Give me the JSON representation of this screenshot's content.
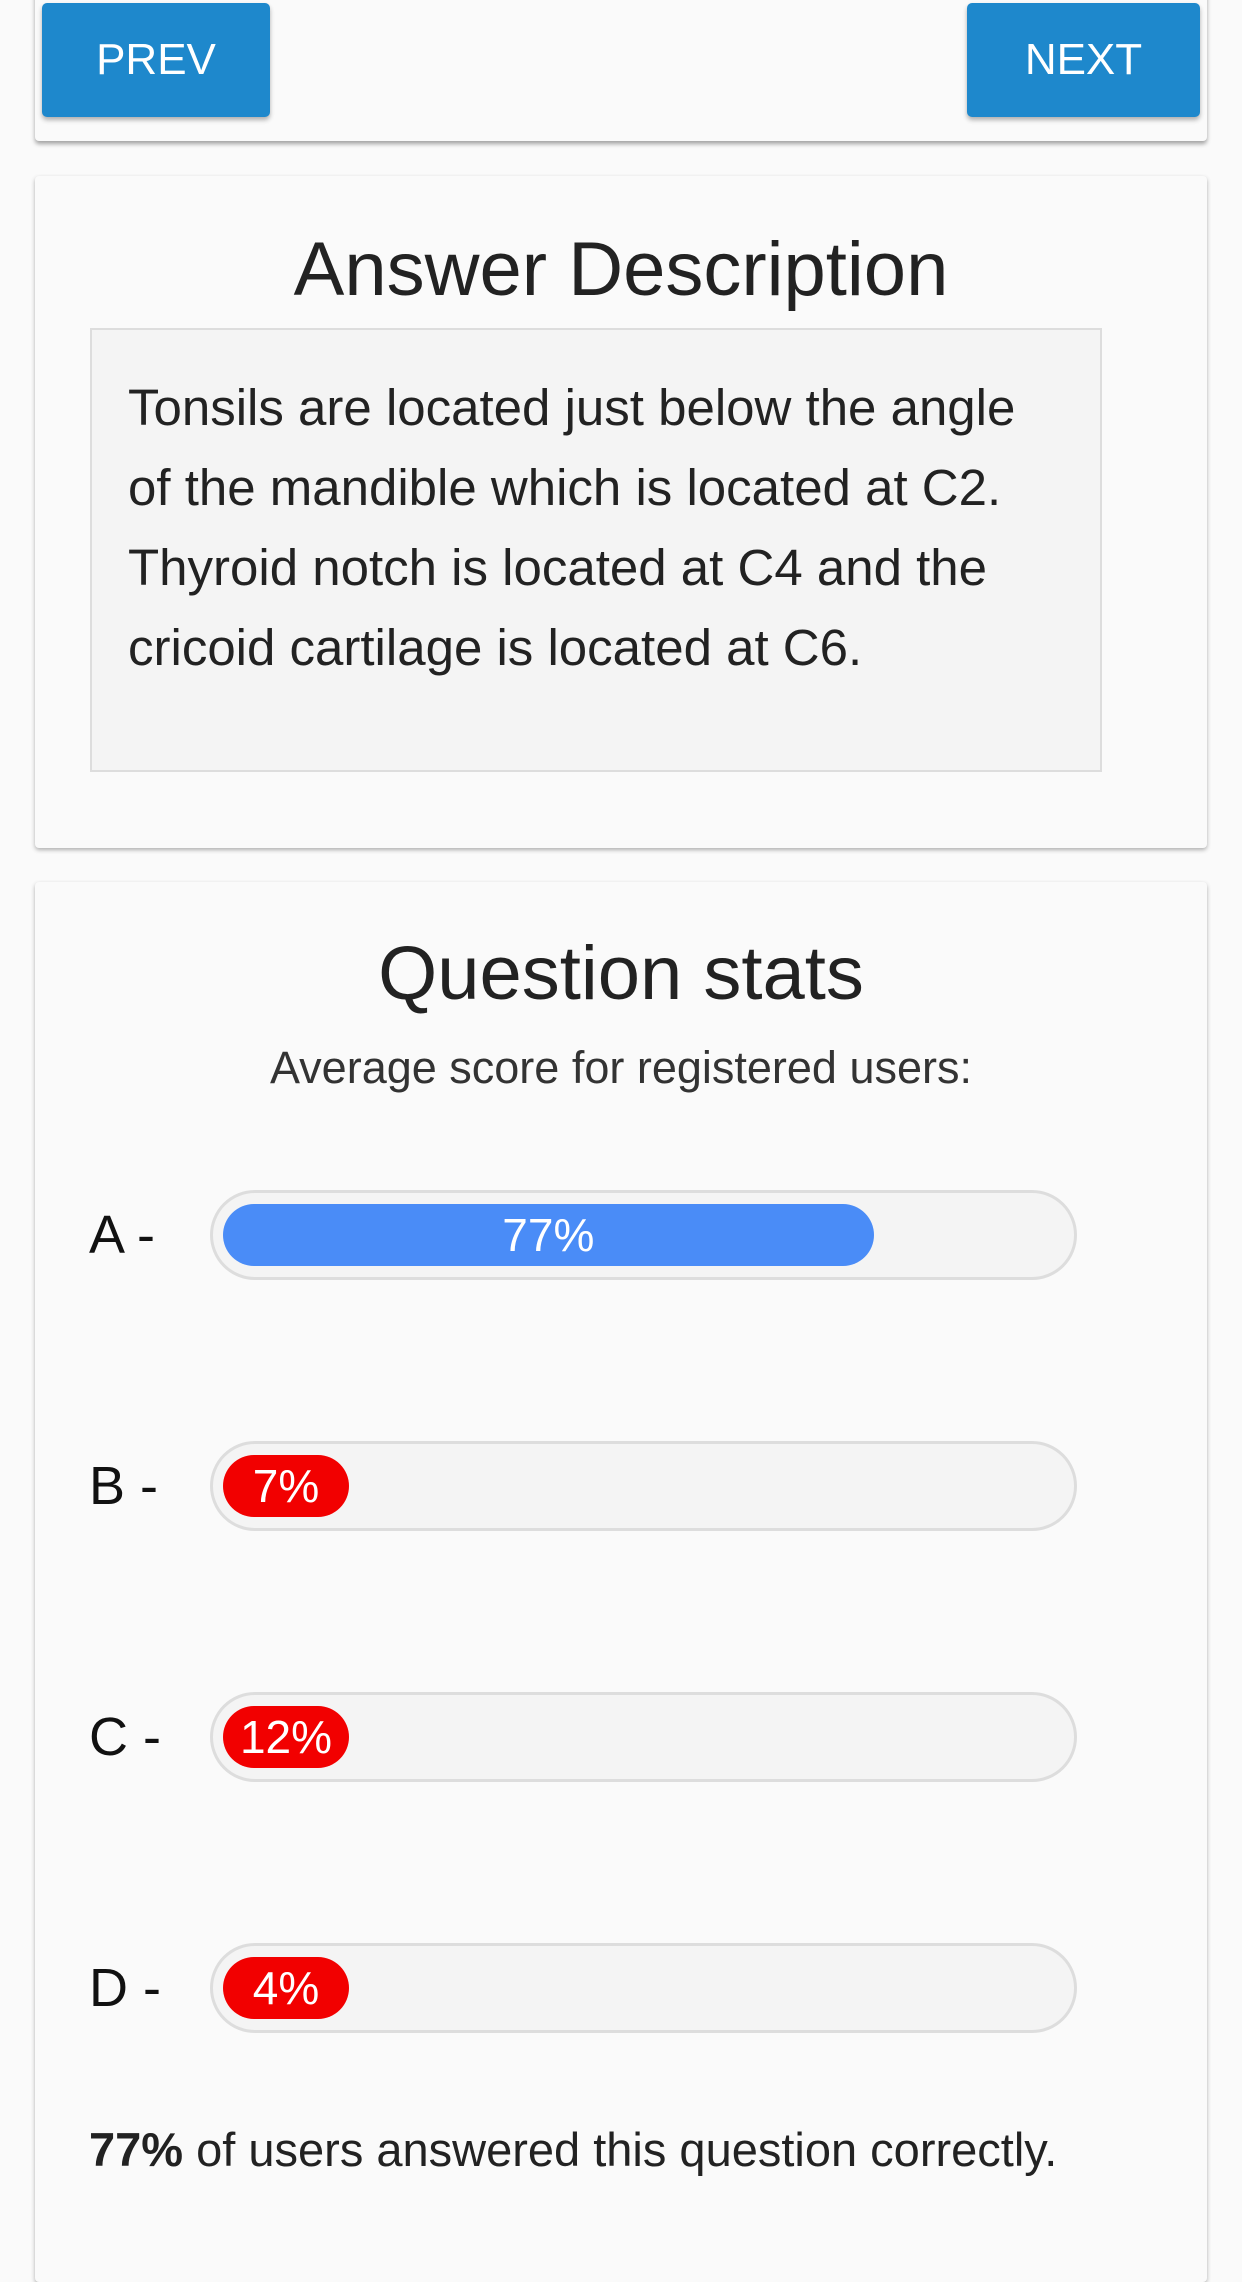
{
  "nav": {
    "prev_label": "PREV",
    "next_label": "NEXT"
  },
  "answer": {
    "title": "Answer Description",
    "text": "Tonsils are located just below the angle of the mandible which is located at C2. Thyroid notch is located at C4 and the cricoid cartilage is located at C6."
  },
  "stats": {
    "title": "Question stats",
    "subtitle": "Average score for registered users:",
    "options": [
      {
        "label": "A -",
        "percent": 77,
        "percent_label": "77%",
        "color": "#4a8cf7"
      },
      {
        "label": "B -",
        "percent": 7,
        "percent_label": "7%",
        "color": "#f20000"
      },
      {
        "label": "C -",
        "percent": 12,
        "percent_label": "12%",
        "color": "#f20000"
      },
      {
        "label": "D -",
        "percent": 4,
        "percent_label": "4%",
        "color": "#f20000"
      }
    ],
    "footer_percent": "77%",
    "footer_text": " of users answered this question correctly."
  }
}
